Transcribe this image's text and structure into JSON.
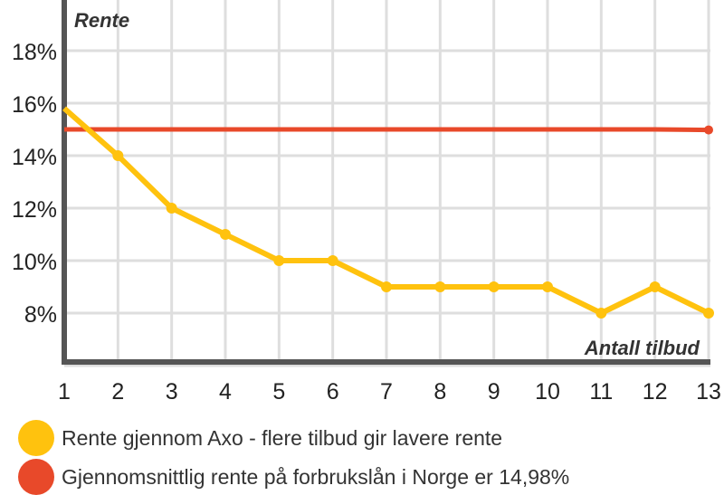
{
  "chart_data": {
    "type": "line",
    "ylabel": "Rente",
    "xlabel": "Antall tilbud",
    "x": [
      1,
      2,
      3,
      4,
      5,
      6,
      7,
      8,
      9,
      10,
      11,
      12,
      13
    ],
    "xlim": [
      1,
      13
    ],
    "ylim": [
      5,
      20
    ],
    "yticks": [
      8,
      10,
      12,
      14,
      16,
      18
    ],
    "ytick_labels": [
      "8%",
      "10%",
      "12%",
      "14%",
      "16%",
      "18%"
    ],
    "xtick_labels": [
      "1",
      "2",
      "3",
      "4",
      "5",
      "6",
      "7",
      "8",
      "9",
      "10",
      "11",
      "12",
      "13"
    ],
    "grid": true,
    "series": [
      {
        "name": "Rente gjennom Axo - flere tilbud gir lavere rente",
        "color": "#FFC20E",
        "values": [
          15.8,
          14,
          12,
          11,
          10,
          10,
          9,
          9,
          9,
          9,
          8,
          9,
          8
        ]
      },
      {
        "name": "Gjennomsnittlig rente på forbrukslån i Norge er 14,98%",
        "color": "#E8492A",
        "values": [
          15,
          15,
          15,
          15,
          15,
          15,
          15,
          15,
          15,
          15,
          15,
          15,
          14.98
        ]
      }
    ],
    "legend": "bottom-left"
  }
}
